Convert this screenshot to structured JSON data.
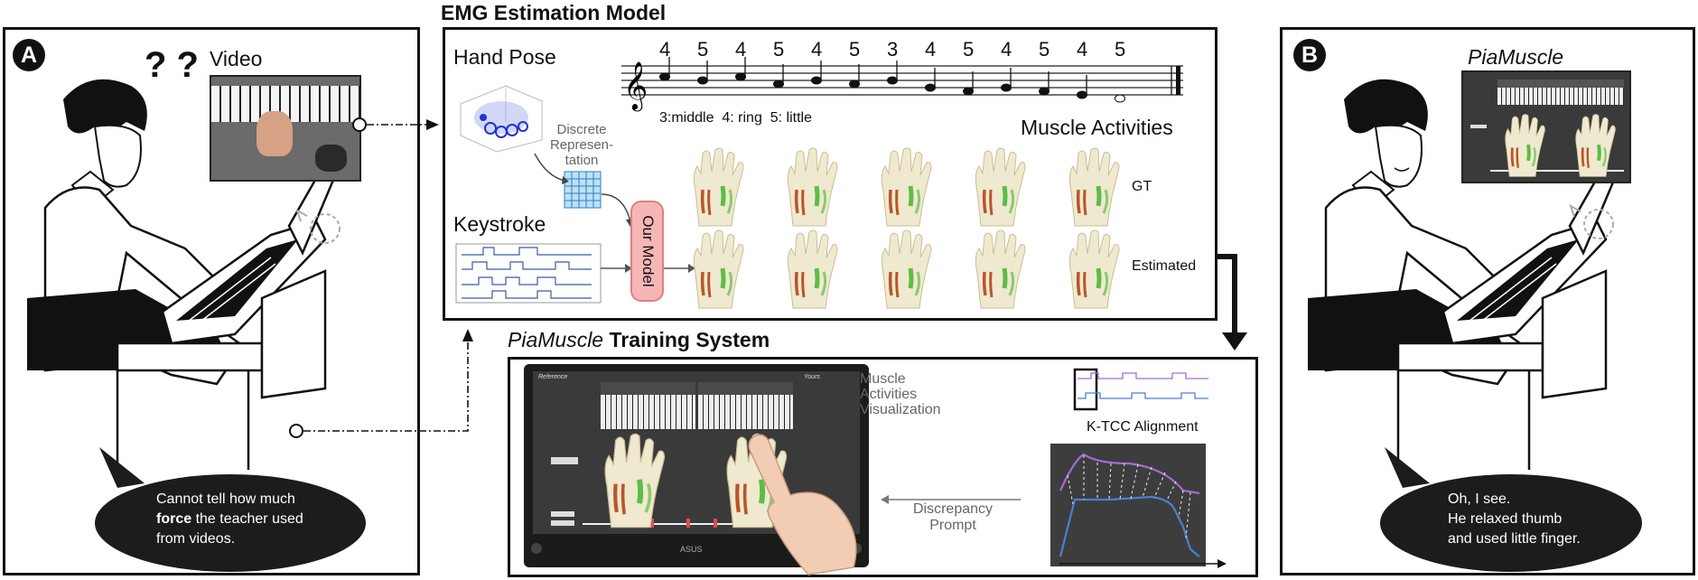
{
  "panel_a": {
    "tag": "A",
    "video_label": "Video",
    "question": "? ?",
    "bubble": {
      "line1": "Cannot tell how much",
      "line2_bold": "force",
      "line2_rest": " the teacher used",
      "line3": "from videos."
    }
  },
  "emg_model": {
    "title": "EMG Estimation Model",
    "hand_pose_label": "Hand Pose",
    "discrete_label": [
      "Discrete",
      "Represen-",
      "tation"
    ],
    "keystroke_label": "Keystroke",
    "model_label": "Our Model",
    "fingerings": [
      "4",
      "5",
      "4",
      "5",
      "4",
      "5",
      "3",
      "4",
      "5",
      "4",
      "5",
      "4",
      "5"
    ],
    "finger_legend": "3:middle  4: ring  5: little",
    "muscle_title": "Muscle Activities",
    "row_gt": "GT",
    "row_est": "Estimated"
  },
  "training": {
    "title_italic": "PiaMuscle",
    "title_rest": " Training System",
    "tablet_reference": "Reference",
    "tablet_yours": "Yours",
    "tablet_brand": "ASUS",
    "muscle_vis": [
      "Muscle",
      "Activities",
      "Visualization"
    ],
    "ktcc_label": "K-TCC Alignment",
    "discrepancy": [
      "Discrepancy",
      "Prompt"
    ]
  },
  "panel_b": {
    "tag": "B",
    "app_name": "PiaMuscle",
    "bubble": [
      "Oh, I see.",
      "He relaxed thumb",
      "and used little finger."
    ]
  },
  "colors": {
    "muscle_red": "#b9552b",
    "muscle_green": "#5cbd45",
    "bone": "#efe9cf",
    "model_box": "#f6b6b6",
    "curve_purple": "#a56bd6",
    "curve_blue": "#4a7fd6",
    "grid_blue": "#4aa3e0"
  }
}
